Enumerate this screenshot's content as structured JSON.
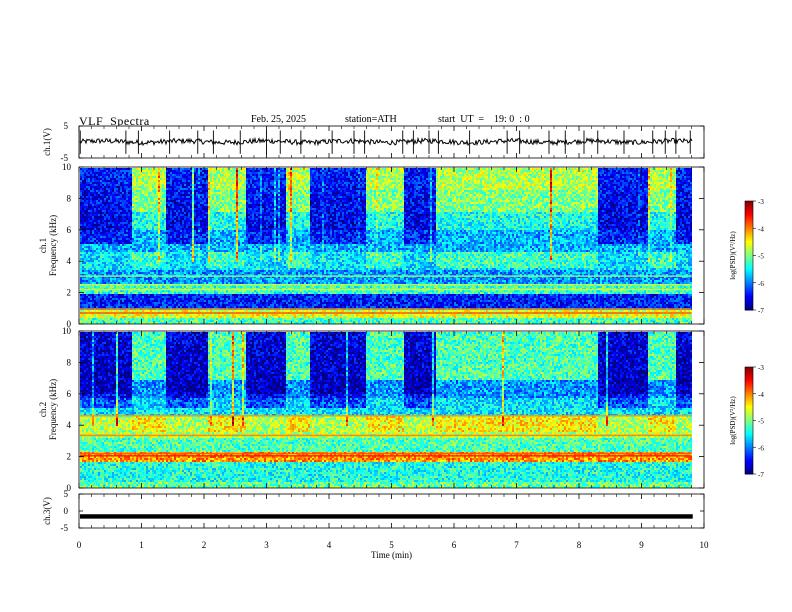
{
  "header": {
    "title": "VLF  Spectra",
    "date": "Feb. 25, 2025",
    "station": "station=ATH",
    "start_ut": "start  UT  =    19: 0  : 0"
  },
  "chart_data": [
    {
      "type": "line",
      "name": "ch1-waveform",
      "ylabel": "ch.1(V)",
      "ylim": [
        -5,
        5
      ],
      "yticks": [
        "5",
        "-5"
      ],
      "xlim": [
        0,
        10
      ],
      "baseline": 0.1,
      "spike_times_min": [
        0.02,
        0.75,
        0.95,
        1.45,
        1.9,
        2.15,
        2.58,
        3.0,
        3.22,
        3.55,
        4.05,
        4.4,
        4.57,
        5.18,
        5.35,
        5.6,
        5.75,
        6.25,
        6.85,
        7.05,
        7.52,
        7.78,
        8.08,
        8.3,
        8.72,
        9.18,
        9.38,
        9.55,
        9.78
      ]
    },
    {
      "type": "heatmap",
      "name": "ch1-spectrogram",
      "ylabel": "ch.1\nFrequency (kHz)",
      "ylim": [
        0,
        10
      ],
      "yticks": [
        "0",
        "2",
        "4",
        "6",
        "8",
        "10"
      ],
      "xlim": [
        0,
        10
      ],
      "data_end_min": 9.8,
      "colorbar": {
        "label": "log(PSD)(V²/Hz)",
        "range": [
          -7,
          -3
        ],
        "ticks": [
          "-3",
          "-4",
          "-5",
          "-6",
          "-7"
        ]
      },
      "bands": [
        {
          "from_khz": 0.0,
          "to_khz": 0.4,
          "log_psd": -5.2
        },
        {
          "from_khz": 0.4,
          "to_khz": 1.0,
          "log_psd": -4.6
        },
        {
          "from_khz": 1.0,
          "to_khz": 2.0,
          "log_psd": -6.4
        },
        {
          "from_khz": 2.0,
          "to_khz": 2.6,
          "log_psd": -5.3
        },
        {
          "from_khz": 2.6,
          "to_khz": 3.5,
          "log_psd": -5.9
        },
        {
          "from_khz": 3.5,
          "to_khz": 4.6,
          "log_psd": -5.6
        },
        {
          "from_khz": 4.6,
          "to_khz": 6.0,
          "log_psd": -5.8
        },
        {
          "from_khz": 6.0,
          "to_khz": 7.2,
          "log_psd": -5.4
        },
        {
          "from_khz": 7.2,
          "to_khz": 8.6,
          "log_psd": -5.0
        },
        {
          "from_khz": 8.6,
          "to_khz": 10.0,
          "log_psd": -4.8
        }
      ],
      "quiet_intervals_min": [
        [
          0.0,
          0.82
        ],
        [
          1.38,
          2.05
        ],
        [
          2.65,
          3.3
        ],
        [
          3.68,
          4.57
        ],
        [
          5.18,
          5.68
        ],
        [
          8.3,
          9.1
        ],
        [
          9.55,
          9.8
        ]
      ],
      "quiet_log_psd_above_6khz": -6.6,
      "line_emissions": [
        {
          "khz": 0.7,
          "log_psd": -3.8
        },
        {
          "khz": 0.95,
          "log_psd": -4.2
        },
        {
          "khz": 2.2,
          "log_psd": -4.6
        },
        {
          "khz": 2.5,
          "log_psd": -4.7
        },
        {
          "khz": 3.05,
          "log_psd": -4.9
        }
      ]
    },
    {
      "type": "heatmap",
      "name": "ch2-spectrogram",
      "ylabel": "ch.2\nFrequency (kHz)",
      "ylim": [
        0,
        10
      ],
      "yticks": [
        "0",
        "2",
        "4",
        "6",
        "8",
        "10"
      ],
      "xlim": [
        0,
        10
      ],
      "data_end_min": 9.8,
      "colorbar": {
        "label": "log(PSD)(V²/Hz)",
        "range": [
          -7,
          -3
        ],
        "ticks": [
          "-3",
          "-4",
          "-5",
          "-6",
          "-7"
        ]
      },
      "bands": [
        {
          "from_khz": 0.0,
          "to_khz": 0.5,
          "log_psd": -5.1
        },
        {
          "from_khz": 0.5,
          "to_khz": 1.7,
          "log_psd": -5.4
        },
        {
          "from_khz": 1.7,
          "to_khz": 2.4,
          "log_psd": -4.1
        },
        {
          "from_khz": 2.4,
          "to_khz": 3.2,
          "log_psd": -5.2
        },
        {
          "from_khz": 3.2,
          "to_khz": 4.6,
          "log_psd": -4.8
        },
        {
          "from_khz": 4.6,
          "to_khz": 5.8,
          "log_psd": -5.6
        },
        {
          "from_khz": 5.8,
          "to_khz": 7.0,
          "log_psd": -5.9
        },
        {
          "from_khz": 7.0,
          "to_khz": 10.0,
          "log_psd": -5.2
        }
      ],
      "quiet_intervals_min": [
        [
          0.0,
          0.82
        ],
        [
          1.38,
          2.05
        ],
        [
          2.65,
          3.3
        ],
        [
          3.68,
          4.57
        ],
        [
          5.18,
          5.68
        ],
        [
          8.3,
          9.1
        ],
        [
          9.55,
          9.8
        ]
      ],
      "quiet_log_psd_above_6khz": -6.8,
      "line_emissions": [
        {
          "khz": 2.05,
          "log_psd": -3.6
        },
        {
          "khz": 2.2,
          "log_psd": -3.8
        },
        {
          "khz": 3.35,
          "log_psd": -4.0
        },
        {
          "khz": 4.6,
          "log_psd": -4.1
        }
      ]
    },
    {
      "type": "line",
      "name": "ch3-waveform",
      "ylabel": "ch.3(V)",
      "ylim": [
        -5,
        5
      ],
      "yticks": [
        "5",
        "0",
        "-5"
      ],
      "xlim": [
        0,
        10
      ],
      "xlabel": "Time  (min)",
      "xticks": [
        "0",
        "1",
        "2",
        "3",
        "4",
        "5",
        "6",
        "7",
        "8",
        "9",
        "10"
      ],
      "baseline": -1.6
    }
  ]
}
